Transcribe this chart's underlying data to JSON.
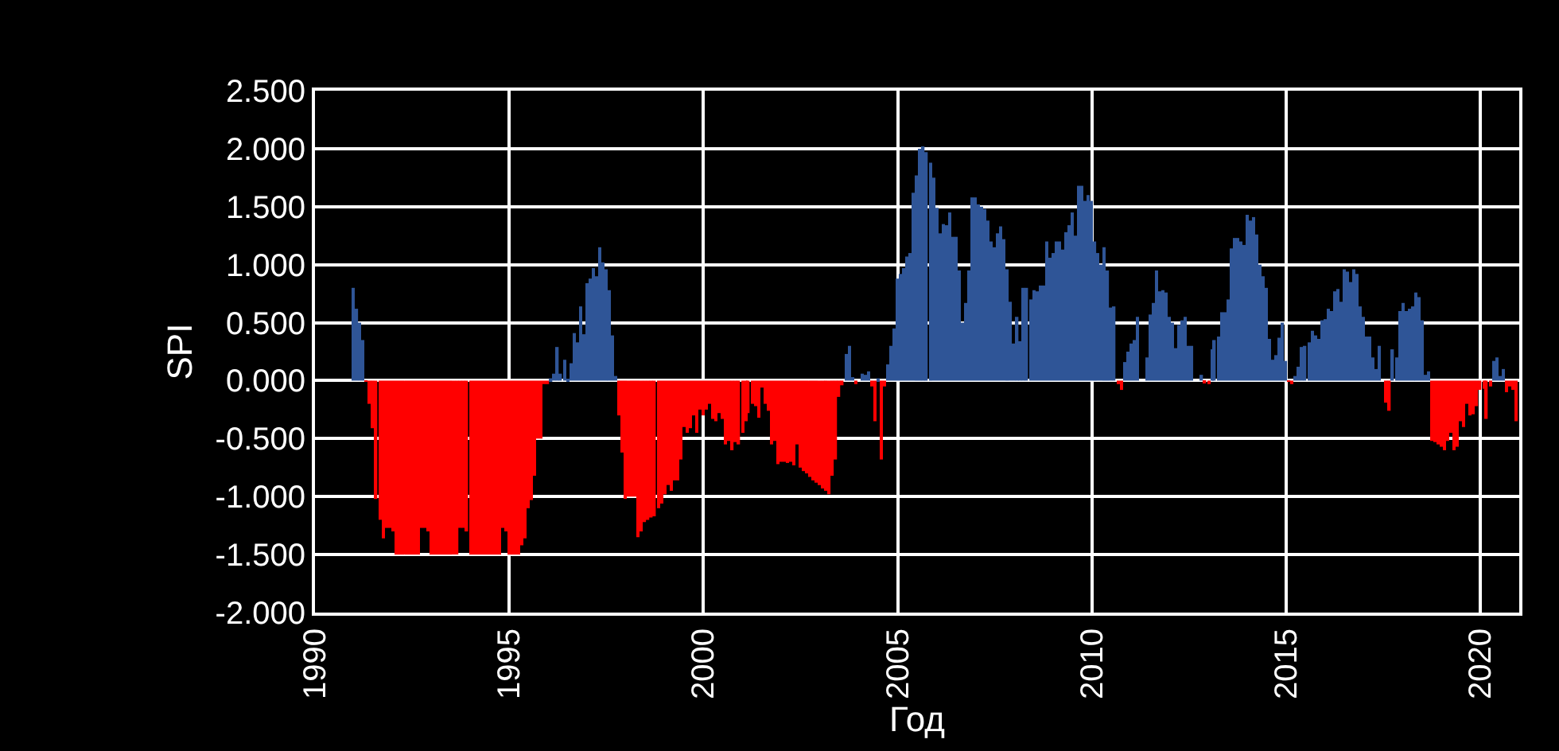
{
  "chart_data": {
    "type": "bar",
    "xlabel": "Год",
    "ylabel": "SPI",
    "x": [
      "1991-01",
      "1991-02",
      "1991-03",
      "1991-04",
      "1991-05",
      "1991-06",
      "1991-07",
      "1991-08",
      "1991-09",
      "1991-10",
      "1991-11",
      "1991-12",
      "1992-01",
      "1992-02",
      "1992-03",
      "1992-04",
      "1992-05",
      "1992-06",
      "1992-07",
      "1992-08",
      "1992-09",
      "1992-10",
      "1992-11",
      "1992-12",
      "1993-01",
      "1993-02",
      "1993-03",
      "1993-04",
      "1993-05",
      "1993-06",
      "1993-07",
      "1993-08",
      "1993-09",
      "1993-10",
      "1993-11",
      "1993-12",
      "1994-01",
      "1994-02",
      "1994-03",
      "1994-04",
      "1994-05",
      "1994-06",
      "1994-07",
      "1994-08",
      "1994-09",
      "1994-10",
      "1994-11",
      "1994-12",
      "1995-01",
      "1995-02",
      "1995-03",
      "1995-04",
      "1995-05",
      "1995-06",
      "1995-07",
      "1995-08",
      "1995-09",
      "1995-10",
      "1995-11",
      "1995-12",
      "1996-01",
      "1996-02",
      "1996-03",
      "1996-04",
      "1996-05",
      "1996-06",
      "1996-07",
      "1996-08",
      "1996-09",
      "1996-10",
      "1996-11",
      "1996-12",
      "1997-01",
      "1997-02",
      "1997-03",
      "1997-04",
      "1997-05",
      "1997-06",
      "1997-07",
      "1997-08",
      "1997-09",
      "1997-10",
      "1997-11",
      "1997-12",
      "1998-01",
      "1998-02",
      "1998-03",
      "1998-04",
      "1998-05",
      "1998-06",
      "1998-07",
      "1998-08",
      "1998-09",
      "1998-10",
      "1998-11",
      "1998-12",
      "1999-01",
      "1999-02",
      "1999-03",
      "1999-04",
      "1999-05",
      "1999-06",
      "1999-07",
      "1999-08",
      "1999-09",
      "1999-10",
      "1999-11",
      "1999-12",
      "2000-01",
      "2000-02",
      "2000-03",
      "2000-04",
      "2000-05",
      "2000-06",
      "2000-07",
      "2000-08",
      "2000-09",
      "2000-10",
      "2000-11",
      "2000-12",
      "2001-01",
      "2001-02",
      "2001-03",
      "2001-04",
      "2001-05",
      "2001-06",
      "2001-07",
      "2001-08",
      "2001-09",
      "2001-10",
      "2001-11",
      "2001-12",
      "2002-01",
      "2002-02",
      "2002-03",
      "2002-04",
      "2002-05",
      "2002-06",
      "2002-07",
      "2002-08",
      "2002-09",
      "2002-10",
      "2002-11",
      "2002-12",
      "2003-01",
      "2003-02",
      "2003-03",
      "2003-04",
      "2003-05",
      "2003-06",
      "2003-07",
      "2003-08",
      "2003-09",
      "2003-10",
      "2003-11",
      "2003-12",
      "2004-01",
      "2004-02",
      "2004-03",
      "2004-04",
      "2004-05",
      "2004-06",
      "2004-07",
      "2004-08",
      "2004-09",
      "2004-10",
      "2004-11",
      "2004-12",
      "2005-01",
      "2005-02",
      "2005-03",
      "2005-04",
      "2005-05",
      "2005-06",
      "2005-07",
      "2005-08",
      "2005-09",
      "2005-10",
      "2005-11",
      "2005-12",
      "2006-01",
      "2006-02",
      "2006-03",
      "2006-04",
      "2006-05",
      "2006-06",
      "2006-07",
      "2006-08",
      "2006-09",
      "2006-10",
      "2006-11",
      "2006-12",
      "2007-01",
      "2007-02",
      "2007-03",
      "2007-04",
      "2007-05",
      "2007-06",
      "2007-07",
      "2007-08",
      "2007-09",
      "2007-10",
      "2007-11",
      "2007-12",
      "2008-01",
      "2008-02",
      "2008-03",
      "2008-04",
      "2008-05",
      "2008-06",
      "2008-07",
      "2008-08",
      "2008-09",
      "2008-10",
      "2008-11",
      "2008-12",
      "2009-01",
      "2009-02",
      "2009-03",
      "2009-04",
      "2009-05",
      "2009-06",
      "2009-07",
      "2009-08",
      "2009-09",
      "2009-10",
      "2009-11",
      "2009-12",
      "2010-01",
      "2010-02",
      "2010-03",
      "2010-04",
      "2010-05",
      "2010-06",
      "2010-07",
      "2010-08",
      "2010-09",
      "2010-10",
      "2010-11",
      "2010-12",
      "2011-01",
      "2011-02",
      "2011-03",
      "2011-04",
      "2011-05",
      "2011-06",
      "2011-07",
      "2011-08",
      "2011-09",
      "2011-10",
      "2011-11",
      "2011-12",
      "2012-01",
      "2012-02",
      "2012-03",
      "2012-04",
      "2012-05",
      "2012-06",
      "2012-07",
      "2012-08",
      "2012-09",
      "2012-10",
      "2012-11",
      "2012-12",
      "2013-01",
      "2013-02",
      "2013-03",
      "2013-04",
      "2013-05",
      "2013-06",
      "2013-07",
      "2013-08",
      "2013-09",
      "2013-10",
      "2013-11",
      "2013-12",
      "2014-01",
      "2014-02",
      "2014-03",
      "2014-04",
      "2014-05",
      "2014-06",
      "2014-07",
      "2014-08",
      "2014-09",
      "2014-10",
      "2014-11",
      "2014-12",
      "2015-01",
      "2015-02",
      "2015-03",
      "2015-04",
      "2015-05",
      "2015-06",
      "2015-07",
      "2015-08",
      "2015-09",
      "2015-10",
      "2015-11",
      "2015-12",
      "2016-01",
      "2016-02",
      "2016-03",
      "2016-04",
      "2016-05",
      "2016-06",
      "2016-07",
      "2016-08",
      "2016-09",
      "2016-10",
      "2016-11",
      "2016-12",
      "2017-01",
      "2017-02",
      "2017-03",
      "2017-04",
      "2017-05",
      "2017-06",
      "2017-07",
      "2017-08",
      "2017-09",
      "2017-10",
      "2017-11",
      "2017-12",
      "2018-01",
      "2018-02",
      "2018-03",
      "2018-04",
      "2018-05",
      "2018-06",
      "2018-07",
      "2018-08",
      "2018-09",
      "2018-10",
      "2018-11",
      "2018-12",
      "2019-01",
      "2019-02",
      "2019-03",
      "2019-04",
      "2019-05",
      "2019-06",
      "2019-07",
      "2019-08",
      "2019-09",
      "2019-10",
      "2019-11",
      "2019-12",
      "2020-01",
      "2020-02",
      "2020-03",
      "2020-04",
      "2020-05",
      "2020-06",
      "2020-07",
      "2020-08",
      "2020-09",
      "2020-10",
      "2020-11",
      "2020-12"
    ],
    "values": [
      0.8,
      0.62,
      0.5,
      0.35,
      -0.01,
      -0.2,
      -0.41,
      -1.02,
      -1.2,
      -1.36,
      -1.27,
      -1.27,
      -1.3,
      -1.5,
      -1.5,
      -1.5,
      -1.5,
      -1.5,
      -1.5,
      -1.5,
      -1.5,
      -1.27,
      -1.27,
      -1.3,
      -1.5,
      -1.5,
      -1.5,
      -1.5,
      -1.5,
      -1.5,
      -1.5,
      -1.5,
      -1.5,
      -1.27,
      -1.27,
      -1.3,
      -1.5,
      -1.5,
      -1.5,
      -1.5,
      -1.5,
      -1.5,
      -1.5,
      -1.5,
      -1.5,
      -1.5,
      -1.27,
      -1.3,
      -1.5,
      -1.5,
      -1.5,
      -1.5,
      -1.42,
      -1.36,
      -1.1,
      -1.03,
      -0.82,
      -0.5,
      -0.5,
      -0.03,
      -0.03,
      0.02,
      0.06,
      0.29,
      0.06,
      0.18,
      0.01,
      0.15,
      0.41,
      0.33,
      0.64,
      0.4,
      0.84,
      0.88,
      0.97,
      0.9,
      1.15,
      1.02,
      0.96,
      0.78,
      0.39,
      0.04,
      -0.3,
      -0.62,
      -1.02,
      -1.0,
      -1.0,
      -1.0,
      -1.35,
      -1.3,
      -1.22,
      -1.2,
      -1.18,
      -1.17,
      -1.1,
      -1.06,
      -0.98,
      -0.9,
      -0.95,
      -0.86,
      -0.86,
      -0.68,
      -0.4,
      -0.45,
      -0.41,
      -0.3,
      -0.45,
      -0.25,
      -0.3,
      -0.25,
      -0.2,
      -0.33,
      -0.35,
      -0.28,
      -0.33,
      -0.55,
      -0.52,
      -0.6,
      -0.53,
      -0.55,
      -0.45,
      -0.35,
      -0.28,
      -0.2,
      -0.22,
      -0.32,
      -0.06,
      -0.2,
      -0.26,
      -0.55,
      -0.52,
      -0.72,
      -0.7,
      -0.7,
      -0.71,
      -0.7,
      -0.73,
      -0.55,
      -0.75,
      -0.78,
      -0.8,
      -0.83,
      -0.86,
      -0.88,
      -0.9,
      -0.93,
      -0.95,
      -0.98,
      -0.82,
      -0.68,
      -0.14,
      -0.04,
      0.23,
      0.3,
      0.03,
      -0.03,
      0.0,
      0.06,
      0.05,
      0.08,
      -0.05,
      -0.35,
      0.02,
      -0.68,
      -0.05,
      0.14,
      0.3,
      0.45,
      0.88,
      0.92,
      0.97,
      1.07,
      1.1,
      1.62,
      1.77,
      2.0,
      2.02,
      1.97,
      1.88,
      1.75,
      1.49,
      1.27,
      1.35,
      1.34,
      1.45,
      1.24,
      1.24,
      0.95,
      0.5,
      0.67,
      0.95,
      1.58,
      1.58,
      1.52,
      1.5,
      1.48,
      1.38,
      1.2,
      1.15,
      1.27,
      1.33,
      1.22,
      0.96,
      0.68,
      0.32,
      0.55,
      0.34,
      0.8,
      0.8,
      0.7,
      0.78,
      0.77,
      0.82,
      0.82,
      1.2,
      1.06,
      1.1,
      1.2,
      1.2,
      1.13,
      1.28,
      1.34,
      1.45,
      1.25,
      1.68,
      1.68,
      1.55,
      1.6,
      1.55,
      1.2,
      1.1,
      1.0,
      1.15,
      0.95,
      0.63,
      0.64,
      -0.03,
      -0.08,
      0.16,
      0.25,
      0.32,
      0.35,
      0.55,
      0.0,
      0.0,
      0.2,
      0.57,
      0.67,
      0.95,
      0.77,
      0.78,
      0.76,
      0.55,
      0.5,
      0.28,
      0.48,
      0.52,
      0.55,
      0.3,
      0.3,
      0.0,
      0.0,
      0.05,
      -0.02,
      -0.03,
      0.27,
      0.35,
      0.38,
      0.59,
      0.59,
      0.7,
      1.14,
      1.23,
      1.23,
      1.2,
      1.17,
      1.43,
      1.38,
      1.41,
      1.26,
      1.0,
      0.9,
      0.8,
      0.36,
      0.18,
      0.22,
      0.37,
      0.5,
      0.17,
      -0.01,
      -0.03,
      0.04,
      0.12,
      0.29,
      0.3,
      0.33,
      0.43,
      0.39,
      0.36,
      0.52,
      0.53,
      0.62,
      0.6,
      0.77,
      0.79,
      0.68,
      0.96,
      0.94,
      0.85,
      0.96,
      0.92,
      0.64,
      0.55,
      0.38,
      0.38,
      0.2,
      0.1,
      0.3,
      0.0,
      -0.19,
      -0.26,
      0.27,
      0.2,
      0.6,
      0.67,
      0.6,
      0.62,
      0.64,
      0.76,
      0.72,
      0.52,
      0.05,
      0.08,
      -0.52,
      -0.53,
      -0.55,
      -0.57,
      -0.6,
      -0.52,
      -0.45,
      -0.6,
      -0.57,
      -0.35,
      -0.4,
      -0.2,
      -0.3,
      -0.29,
      -0.22,
      -0.08,
      -0.07,
      -0.33,
      -0.05,
      0.17,
      0.2,
      0.04,
      0.1,
      -0.1,
      -0.05,
      -0.08,
      -0.35
    ],
    "colors": [
      "#2f5597",
      "#2f5597",
      "#2f5597",
      "#2f5597",
      "#ff0000",
      "#ff0000",
      "#ff0000",
      "#ff0000",
      "#ff0000",
      "#ff0000",
      "#ff0000",
      "#ff0000",
      "#ff0000",
      "#ff0000",
      "#ff0000",
      "#ff0000",
      "#ff0000",
      "#ff0000",
      "#ff0000",
      "#ff0000",
      "#ff0000",
      "#ff0000",
      "#ff0000",
      "#ff0000",
      "#ff0000",
      "#ff0000",
      "#ff0000",
      "#ff0000",
      "#ff0000",
      "#ff0000",
      "#ff0000",
      "#ff0000",
      "#ff0000",
      "#ff0000",
      "#ff0000",
      "#ff0000",
      "#ff0000",
      "#ff0000",
      "#ff0000",
      "#ff0000",
      "#ff0000",
      "#ff0000",
      "#ff0000",
      "#ff0000",
      "#ff0000",
      "#ff0000",
      "#ff0000",
      "#ff0000",
      "#ff0000",
      "#ff0000",
      "#ff0000",
      "#ff0000",
      "#ff0000",
      "#ff0000",
      "#ff0000",
      "#ff0000",
      "#ff0000",
      "#ff0000",
      "#ff0000",
      "#ff0000",
      "#ff0000",
      "#2f5597",
      "#2f5597",
      "#2f5597",
      "#2f5597",
      "#2f5597",
      "#2f5597",
      "#2f5597",
      "#2f5597",
      "#2f5597",
      "#2f5597",
      "#2f5597",
      "#2f5597",
      "#2f5597",
      "#2f5597",
      "#2f5597",
      "#2f5597",
      "#2f5597",
      "#2f5597",
      "#2f5597",
      "#2f5597",
      "#2f5597",
      "#ff0000",
      "#ff0000",
      "#ff0000",
      "#ff0000",
      "#ff0000",
      "#ff0000",
      "#ff0000",
      "#ff0000",
      "#ff0000",
      "#ff0000",
      "#ff0000",
      "#ff0000",
      "#ff0000",
      "#ff0000",
      "#ff0000",
      "#ff0000",
      "#ff0000",
      "#ff0000",
      "#ff0000",
      "#ff0000",
      "#ff0000",
      "#ff0000",
      "#ff0000",
      "#ff0000",
      "#ff0000",
      "#ff0000",
      "#ff0000",
      "#ff0000",
      "#ff0000",
      "#ff0000",
      "#ff0000",
      "#ff0000",
      "#ff0000",
      "#ff0000",
      "#ff0000",
      "#ff0000",
      "#ff0000",
      "#ff0000",
      "#ff0000",
      "#ff0000",
      "#ff0000",
      "#ff0000",
      "#ff0000",
      "#ff0000",
      "#ff0000",
      "#ff0000",
      "#ff0000",
      "#ff0000",
      "#ff0000",
      "#ff0000",
      "#ff0000",
      "#ff0000",
      "#ff0000",
      "#ff0000",
      "#ff0000",
      "#ff0000",
      "#ff0000",
      "#ff0000",
      "#ff0000",
      "#ff0000",
      "#ff0000",
      "#ff0000",
      "#ff0000",
      "#ff0000",
      "#ff0000",
      "#ff0000",
      "#ff0000",
      "#ff0000",
      "#ff0000",
      "#ff0000",
      "#2f5597",
      "#2f5597",
      "#2f5597",
      "#ff0000",
      "#2f5597",
      "#2f5597",
      "#2f5597",
      "#2f5597",
      "#ff0000",
      "#ff0000",
      "#2f5597",
      "#ff0000",
      "#ff0000",
      "#2f5597",
      "#2f5597",
      "#2f5597",
      "#2f5597",
      "#2f5597",
      "#2f5597",
      "#2f5597",
      "#2f5597",
      "#2f5597",
      "#2f5597",
      "#2f5597",
      "#2f5597",
      "#2f5597",
      "#2f5597",
      "#2f5597",
      "#2f5597",
      "#2f5597",
      "#2f5597",
      "#2f5597",
      "#2f5597",
      "#2f5597",
      "#2f5597",
      "#2f5597",
      "#2f5597",
      "#2f5597",
      "#2f5597",
      "#2f5597",
      "#2f5597",
      "#2f5597",
      "#2f5597",
      "#2f5597",
      "#2f5597",
      "#2f5597",
      "#2f5597",
      "#2f5597",
      "#2f5597",
      "#2f5597",
      "#2f5597",
      "#2f5597",
      "#2f5597",
      "#2f5597",
      "#2f5597",
      "#2f5597",
      "#2f5597",
      "#2f5597",
      "#2f5597",
      "#2f5597",
      "#2f5597",
      "#2f5597",
      "#2f5597",
      "#2f5597",
      "#2f5597",
      "#2f5597",
      "#2f5597",
      "#2f5597",
      "#2f5597",
      "#2f5597",
      "#2f5597",
      "#2f5597",
      "#2f5597",
      "#2f5597",
      "#2f5597",
      "#2f5597",
      "#2f5597",
      "#2f5597",
      "#2f5597",
      "#2f5597",
      "#2f5597",
      "#2f5597",
      "#2f5597",
      "#2f5597",
      "#ff0000",
      "#ff0000",
      "#2f5597",
      "#2f5597",
      "#2f5597",
      "#2f5597",
      "#2f5597",
      "#2f5597",
      "#2f5597",
      "#2f5597",
      "#2f5597",
      "#2f5597",
      "#2f5597",
      "#2f5597",
      "#2f5597",
      "#2f5597",
      "#2f5597",
      "#2f5597",
      "#2f5597",
      "#2f5597",
      "#2f5597",
      "#2f5597",
      "#2f5597",
      "#2f5597",
      "#2f5597",
      "#2f5597",
      "#2f5597",
      "#ff0000",
      "#ff0000",
      "#2f5597",
      "#2f5597",
      "#2f5597",
      "#2f5597",
      "#2f5597",
      "#2f5597",
      "#2f5597",
      "#2f5597",
      "#2f5597",
      "#2f5597",
      "#2f5597",
      "#2f5597",
      "#2f5597",
      "#2f5597",
      "#2f5597",
      "#2f5597",
      "#2f5597",
      "#2f5597",
      "#2f5597",
      "#2f5597",
      "#2f5597",
      "#2f5597",
      "#2f5597",
      "#2f5597",
      "#ff0000",
      "#ff0000",
      "#2f5597",
      "#2f5597",
      "#2f5597",
      "#2f5597",
      "#2f5597",
      "#2f5597",
      "#2f5597",
      "#2f5597",
      "#2f5597",
      "#2f5597",
      "#2f5597",
      "#2f5597",
      "#2f5597",
      "#2f5597",
      "#2f5597",
      "#2f5597",
      "#2f5597",
      "#2f5597",
      "#2f5597",
      "#2f5597",
      "#2f5597",
      "#2f5597",
      "#2f5597",
      "#2f5597",
      "#2f5597",
      "#2f5597",
      "#2f5597",
      "#2f5597",
      "#ff0000",
      "#ff0000",
      "#2f5597",
      "#2f5597",
      "#2f5597",
      "#2f5597",
      "#2f5597",
      "#2f5597",
      "#2f5597",
      "#2f5597",
      "#2f5597",
      "#2f5597",
      "#2f5597",
      "#2f5597",
      "#ff0000",
      "#ff0000",
      "#ff0000",
      "#ff0000",
      "#ff0000",
      "#ff0000",
      "#ff0000",
      "#ff0000",
      "#ff0000",
      "#ff0000",
      "#ff0000",
      "#ff0000",
      "#ff0000",
      "#ff0000",
      "#ff0000",
      "#ff0000",
      "#ff0000",
      "#ff0000",
      "#ff0000",
      "#2f5597",
      "#2f5597",
      "#2f5597",
      "#2f5597",
      "#ff0000",
      "#ff0000",
      "#ff0000",
      "#ff0000"
    ],
    "xlim": [
      "1990-01-01",
      "2021-01-01"
    ],
    "xticks": [
      {
        "value": "1990-01-01",
        "label": "1990"
      },
      {
        "value": "1995-01-01",
        "label": "1995"
      },
      {
        "value": "2000-01-01",
        "label": "2000"
      },
      {
        "value": "2005-01-01",
        "label": "2005"
      },
      {
        "value": "2010-01-01",
        "label": "2010"
      },
      {
        "value": "2015-01-01",
        "label": "2015"
      },
      {
        "value": "2020-01-01",
        "label": "2020"
      }
    ],
    "ylim": [
      -2.0,
      2.5
    ],
    "yticks": [
      {
        "value": -2.0,
        "label": "-2.000"
      },
      {
        "value": -1.5,
        "label": "-1.500"
      },
      {
        "value": -1.0,
        "label": "-1.000"
      },
      {
        "value": -0.5,
        "label": "-0.500"
      },
      {
        "value": 0.0,
        "label": "0.000"
      },
      {
        "value": 0.5,
        "label": "0.500"
      },
      {
        "value": 1.0,
        "label": "1.000"
      },
      {
        "value": 1.5,
        "label": "1.500"
      },
      {
        "value": 2.0,
        "label": "2.000"
      },
      {
        "value": 2.5,
        "label": "2.500"
      }
    ],
    "grid": true
  }
}
